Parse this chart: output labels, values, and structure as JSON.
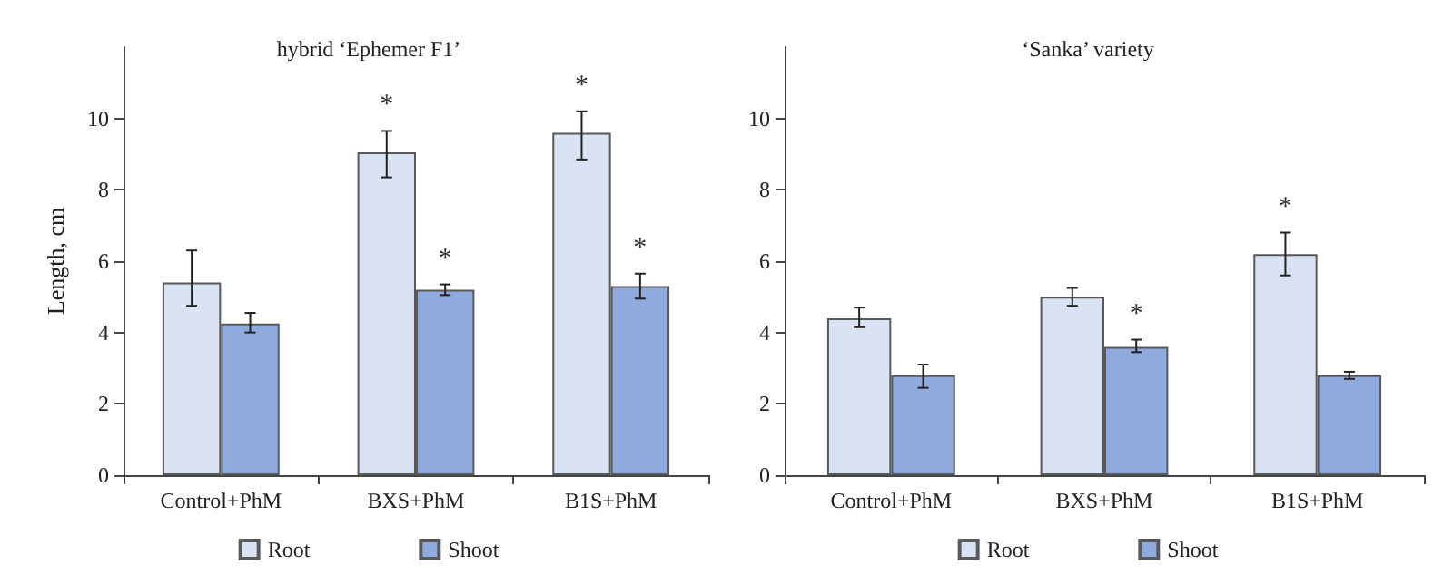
{
  "chart_data": [
    {
      "type": "bar",
      "title": "hybrid ‘Ephemer F1’",
      "ylabel": "Length, cm",
      "categories": [
        "Control+PhM",
        "BXS+PhM",
        "B1S+PhM"
      ],
      "series": [
        {
          "name": "Root",
          "color": "#dae3f3",
          "values": [
            5.4,
            9.05,
            9.6
          ],
          "errors": [
            [
              4.75,
              6.3
            ],
            [
              8.35,
              9.65
            ],
            [
              8.85,
              10.2
            ]
          ]
        },
        {
          "name": "Shoot",
          "color": "#8faadc",
          "values": [
            4.25,
            5.2,
            5.3
          ],
          "errors": [
            [
              4.0,
              4.55
            ],
            [
              5.05,
              5.35
            ],
            [
              4.95,
              5.65
            ]
          ]
        }
      ],
      "annotations": [
        {
          "text": "*",
          "x": "BXS+PhM",
          "y": 9.05
        },
        {
          "text": "*",
          "x": "B1S+PhM",
          "y": 9.6
        },
        {
          "text": "*",
          "x": "BXS+PhM",
          "y": 5.2
        },
        {
          "text": "*",
          "x": "B1S+PhM",
          "y": 5.3
        }
      ],
      "ylim": [
        0,
        12
      ],
      "yticks": [
        0,
        2,
        4,
        6,
        8,
        10
      ],
      "grid": false,
      "legend": "bottom"
    },
    {
      "type": "bar",
      "title": "‘Sanka’ variety",
      "categories": [
        "Control+PhM",
        "BXS+PhM",
        "B1S+PhM"
      ],
      "series": [
        {
          "name": "Root",
          "color": "#dae3f3",
          "values": [
            4.4,
            5.0,
            6.2
          ],
          "errors": [
            [
              4.15,
              4.7
            ],
            [
              4.75,
              5.25
            ],
            [
              5.6,
              6.8
            ]
          ]
        },
        {
          "name": "Shoot",
          "color": "#8faadc",
          "values": [
            2.8,
            3.6,
            2.8
          ],
          "errors": [
            [
              2.45,
              3.1
            ],
            [
              3.45,
              3.8
            ],
            [
              2.7,
              2.9
            ]
          ]
        }
      ],
      "annotations": [
        {
          "text": "*",
          "x": "BXS+PhM",
          "y": 3.6
        },
        {
          "text": "*",
          "x": "B1S+PhM",
          "y": 6.2
        }
      ],
      "ylim": [
        0,
        12
      ],
      "yticks": [
        0,
        2,
        4,
        6,
        8,
        10
      ],
      "grid": false,
      "legend": "bottom"
    }
  ]
}
